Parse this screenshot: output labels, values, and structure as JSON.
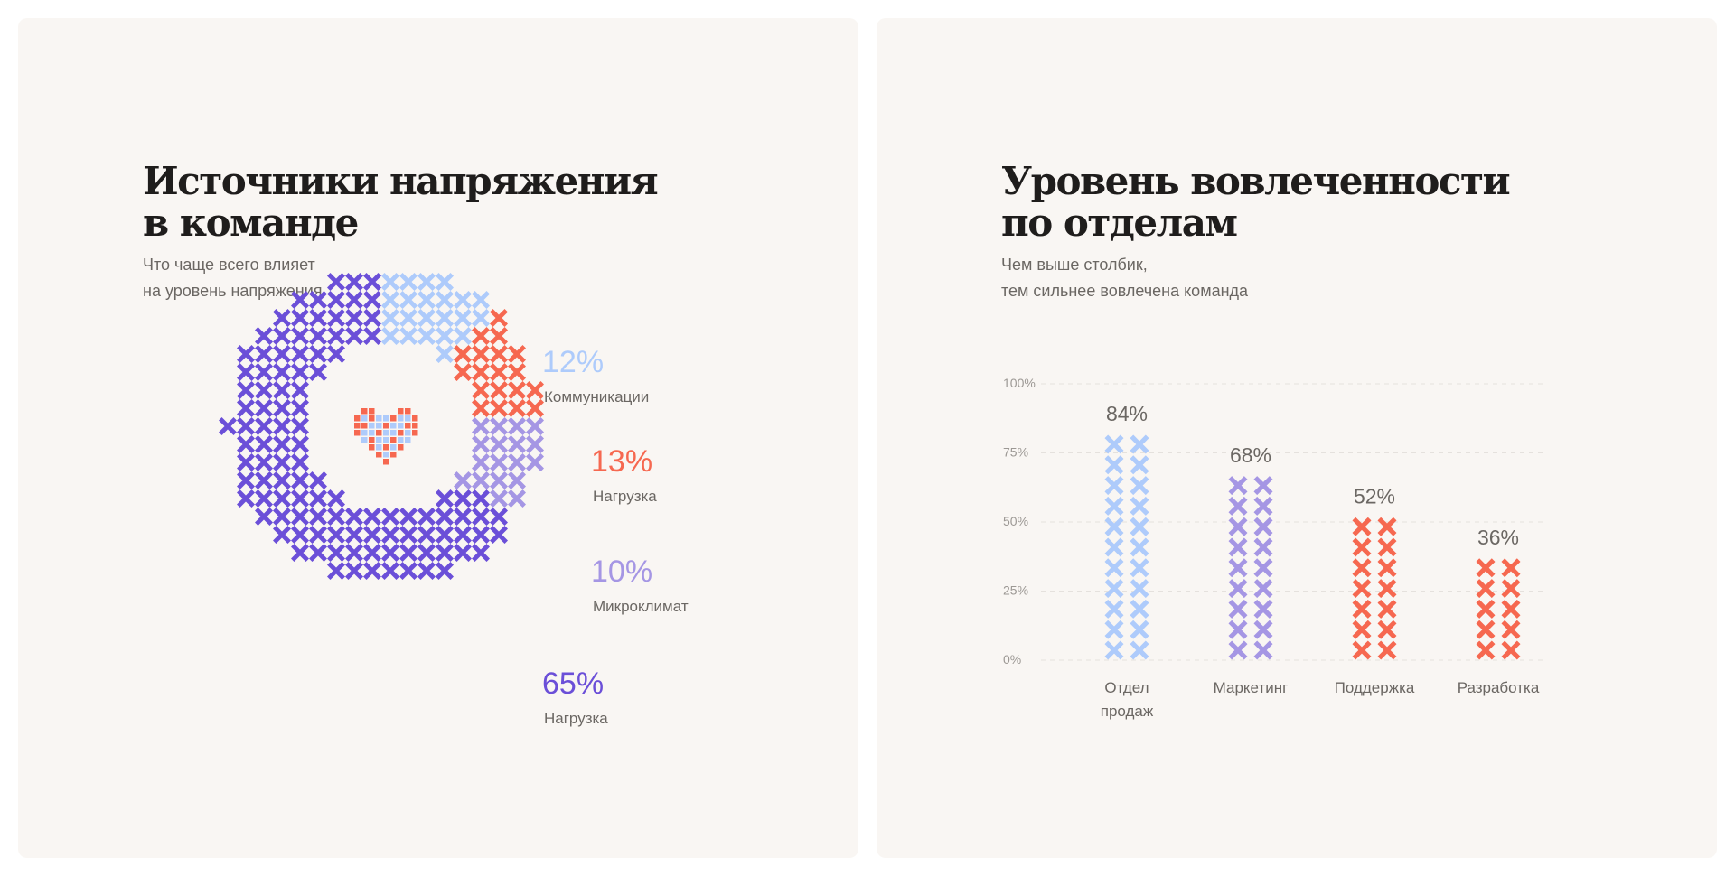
{
  "colors": {
    "background": "#f9f6f3",
    "title": "#1f1d1c",
    "text": "#6b6763",
    "light_blue": "#aecbfb",
    "coral": "#f66850",
    "lavender": "#a596e4",
    "purple": "#6b4fd8"
  },
  "left_panel": {
    "title_line1": "Источники напряжения",
    "title_line2": "в команде",
    "subtitle_line1": "Что чаще всего влияет",
    "subtitle_line2": "на уровень напряжения",
    "center_icon": "pixel-heart-icon"
  },
  "right_panel": {
    "title_line1": "Уровень вовлеченности",
    "title_line2": "по отделам",
    "subtitle_line1": "Чем выше столбик,",
    "subtitle_line2": "тем сильнее вовлечена команда"
  },
  "chart_data": [
    {
      "type": "pie",
      "variant": "donut-of-cross-icons",
      "slices": [
        {
          "value": 12,
          "label_value": "12%",
          "label": "Коммуникации",
          "color": "#aecbfb"
        },
        {
          "value": 13,
          "label_value": "13%",
          "label": "Нагрузка",
          "color": "#f66850"
        },
        {
          "value": 10,
          "label_value": "10%",
          "label": "Микроклимат",
          "color": "#a596e4"
        },
        {
          "value": 65,
          "label_value": "65%",
          "label": "Нагрузка",
          "color": "#6b4fd8"
        }
      ]
    },
    {
      "type": "bar",
      "variant": "stacked-cross-icons",
      "categories": [
        [
          "Отдел",
          "продаж"
        ],
        [
          "Маркетинг"
        ],
        [
          "Поддержка"
        ],
        [
          "Разработка"
        ]
      ],
      "values": [
        84,
        68,
        52,
        36
      ],
      "value_labels": [
        "84%",
        "68%",
        "52%",
        "36%"
      ],
      "colors": [
        "#aecbfb",
        "#a596e4",
        "#f66850",
        "#f66850"
      ],
      "yticks": [
        "0%",
        "25%",
        "50%",
        "75%",
        "100%"
      ],
      "ylim": [
        0,
        100
      ],
      "grid": true
    }
  ]
}
